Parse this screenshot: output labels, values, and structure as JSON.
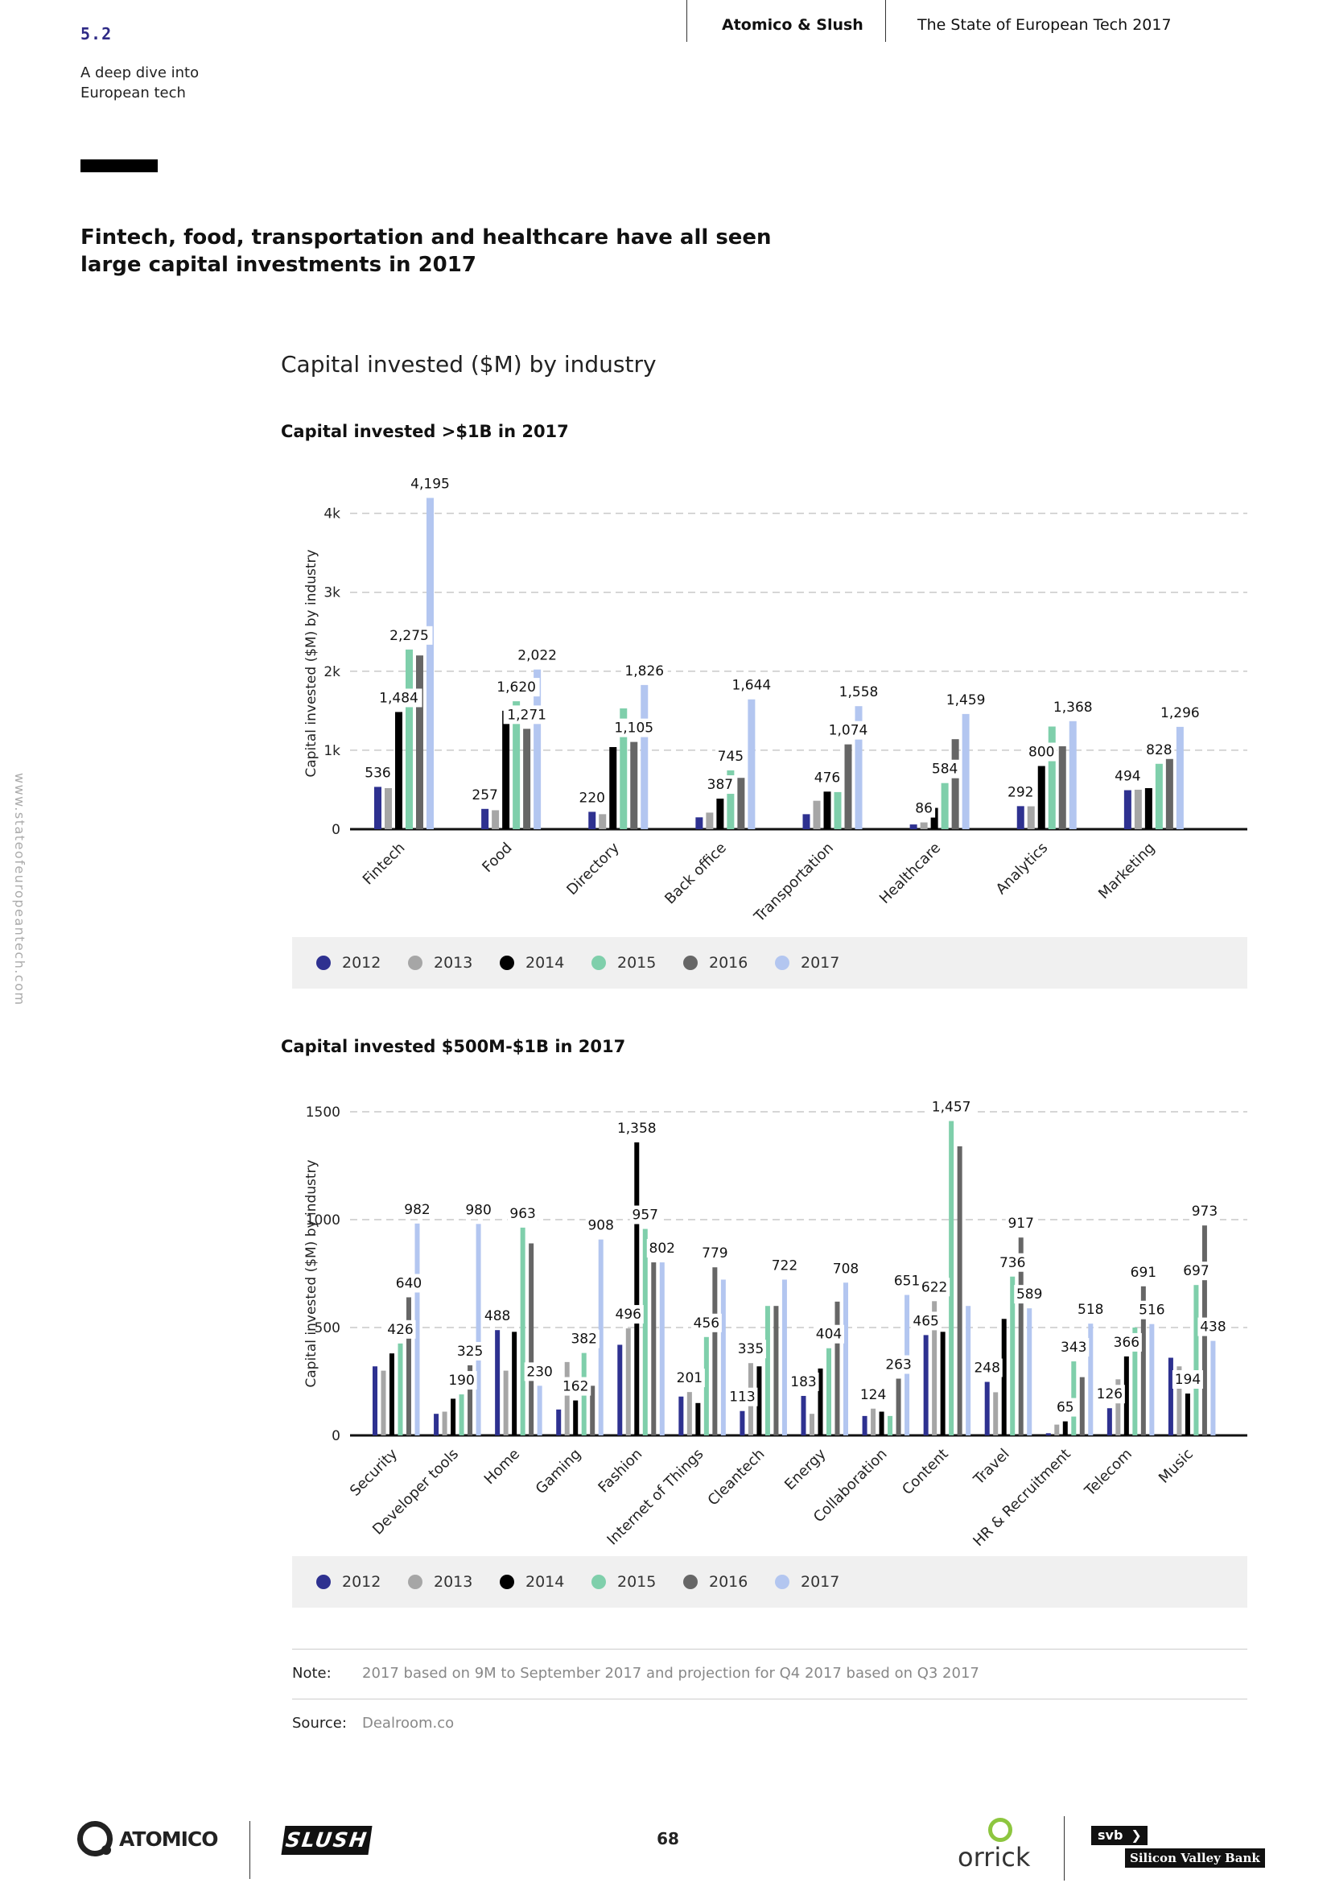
{
  "header": {
    "section_number": "5.2",
    "section_name": "A deep dive into European tech",
    "publisher": "Atomico & Slush",
    "report_title": "The State of European Tech 2017"
  },
  "headline": "Fintech, food, transportation and healthcare have all seen large capital investments in 2017",
  "side_url": "www.stateofeuropeantech.com",
  "main_chart_title": "Capital invested ($M) by industry",
  "legend": [
    {
      "label": "2012",
      "color": "#2e3190"
    },
    {
      "label": "2013",
      "color": "#a6a6a6"
    },
    {
      "label": "2014",
      "color": "#000000"
    },
    {
      "label": "2015",
      "color": "#7fcfab"
    },
    {
      "label": "2016",
      "color": "#666666"
    },
    {
      "label": "2017",
      "color": "#b3c6f0"
    }
  ],
  "chart_data": [
    {
      "type": "bar",
      "title": "Capital invested >$1B in 2017",
      "ylabel": "Capital invested ($M) by industry",
      "xlabel": "",
      "ylim": [
        0,
        4200
      ],
      "yticks": [
        0,
        1000,
        2000,
        3000,
        4000
      ],
      "ytick_labels": [
        "0",
        "1k",
        "2k",
        "3k",
        "4k"
      ],
      "categories": [
        "Fintech",
        "Food",
        "Directory",
        "Back office",
        "Transportation",
        "Healthcare",
        "Analytics",
        "Marketing"
      ],
      "series": [
        {
          "name": "2012",
          "values": [
            536,
            257,
            220,
            150,
            190,
            60,
            292,
            494
          ]
        },
        {
          "name": "2013",
          "values": [
            520,
            240,
            190,
            210,
            360,
            86,
            290,
            500
          ]
        },
        {
          "name": "2014",
          "values": [
            1484,
            1500,
            1040,
            387,
            476,
            270,
            800,
            520
          ]
        },
        {
          "name": "2015",
          "values": [
            2275,
            1620,
            1530,
            745,
            470,
            584,
            1300,
            828
          ]
        },
        {
          "name": "2016",
          "values": [
            2200,
            1271,
            1105,
            650,
            1074,
            1140,
            1050,
            1060
          ]
        },
        {
          "name": "2017",
          "values": [
            4195,
            2022,
            1826,
            1644,
            1558,
            1459,
            1368,
            1296
          ]
        }
      ],
      "data_labels": [
        {
          "category": "Fintech",
          "labels": [
            "536",
            "1,484",
            "2,275",
            "4,195"
          ]
        },
        {
          "category": "Food",
          "labels": [
            "257",
            "1,620",
            "1,271",
            "2,022"
          ]
        },
        {
          "category": "Directory",
          "labels": [
            "220",
            "1,105",
            "1,826"
          ]
        },
        {
          "category": "Back office",
          "labels": [
            "387",
            "745",
            "1,644"
          ]
        },
        {
          "category": "Transportation",
          "labels": [
            "476",
            "1,074",
            "1,558"
          ]
        },
        {
          "category": "Healthcare",
          "labels": [
            "86",
            "584",
            "1,459"
          ]
        },
        {
          "category": "Analytics",
          "labels": [
            "292",
            "800",
            "1,368"
          ]
        },
        {
          "category": "Marketing",
          "labels": [
            "494",
            "828",
            "1,296"
          ]
        }
      ],
      "grid": true
    },
    {
      "type": "bar",
      "title": "Capital invested $500M-$1B in 2017",
      "ylabel": "Capital invested ($M) by industry",
      "xlabel": "",
      "ylim": [
        0,
        1500
      ],
      "yticks": [
        0,
        500,
        1000,
        1500
      ],
      "ytick_labels": [
        "0",
        "500",
        "1000",
        "1500"
      ],
      "categories": [
        "Security",
        "Developer tools",
        "Home",
        "Gaming",
        "Fashion",
        "Internet of Things",
        "Cleantech",
        "Energy",
        "Collaboration",
        "Content",
        "Travel",
        "HR & Recruitment",
        "Telecom",
        "Music"
      ],
      "series": [
        {
          "name": "2012",
          "values": [
            320,
            100,
            488,
            120,
            420,
            180,
            113,
            183,
            90,
            465,
            248,
            10,
            126,
            360
          ]
        },
        {
          "name": "2013",
          "values": [
            300,
            110,
            300,
            340,
            496,
            201,
            335,
            100,
            124,
            622,
            200,
            50,
            260,
            320
          ]
        },
        {
          "name": "2014",
          "values": [
            380,
            170,
            480,
            162,
            1358,
            150,
            320,
            310,
            110,
            480,
            540,
            65,
            366,
            194
          ]
        },
        {
          "name": "2015",
          "values": [
            426,
            190,
            963,
            382,
            957,
            456,
            600,
            404,
            90,
            1457,
            736,
            343,
            500,
            697
          ]
        },
        {
          "name": "2016",
          "values": [
            640,
            325,
            890,
            230,
            802,
            779,
            600,
            620,
            263,
            1340,
            917,
            270,
            691,
            973
          ]
        },
        {
          "name": "2017",
          "values": [
            982,
            980,
            230,
            908,
            802,
            722,
            722,
            708,
            651,
            600,
            589,
            518,
            516,
            438
          ]
        }
      ],
      "data_labels": [
        {
          "category": "Security",
          "labels": [
            "426",
            "640",
            "982"
          ]
        },
        {
          "category": "Developer tools",
          "labels": [
            "190",
            "325",
            "980"
          ]
        },
        {
          "category": "Home",
          "labels": [
            "488",
            "230",
            "963"
          ]
        },
        {
          "category": "Gaming",
          "labels": [
            "162",
            "382",
            "908"
          ]
        },
        {
          "category": "Fashion",
          "labels": [
            "496",
            "1,358",
            "957",
            "802"
          ]
        },
        {
          "category": "Internet of Things",
          "labels": [
            "201",
            "456",
            "779"
          ]
        },
        {
          "category": "Cleantech",
          "labels": [
            "113",
            "335",
            "722"
          ]
        },
        {
          "category": "Energy",
          "labels": [
            "183",
            "404",
            "708"
          ]
        },
        {
          "category": "Collaboration",
          "labels": [
            "124",
            "263",
            "651"
          ]
        },
        {
          "category": "Content",
          "labels": [
            "465",
            "622",
            "1,457"
          ]
        },
        {
          "category": "Travel",
          "labels": [
            "248",
            "589",
            "736",
            "917"
          ]
        },
        {
          "category": "HR & Recruitment",
          "labels": [
            "65",
            "343",
            "518"
          ]
        },
        {
          "category": "Telecom",
          "labels": [
            "126",
            "366",
            "516",
            "691"
          ]
        },
        {
          "category": "Music",
          "labels": [
            "194",
            "438",
            "697",
            "973"
          ]
        }
      ],
      "grid": true
    }
  ],
  "note": {
    "label": "Note:",
    "text": "2017 based on 9M to September 2017 and projection for Q4 2017 based on Q3 2017"
  },
  "source": {
    "label": "Source:",
    "text": "Dealroom.co"
  },
  "footer": {
    "page_number": "68",
    "logo_atomico": "ATOMICO",
    "logo_slush": "SLUSH",
    "logo_orrick": "orrick",
    "logo_svb_short": "svb",
    "logo_svb_full": "Silicon Valley Bank"
  }
}
